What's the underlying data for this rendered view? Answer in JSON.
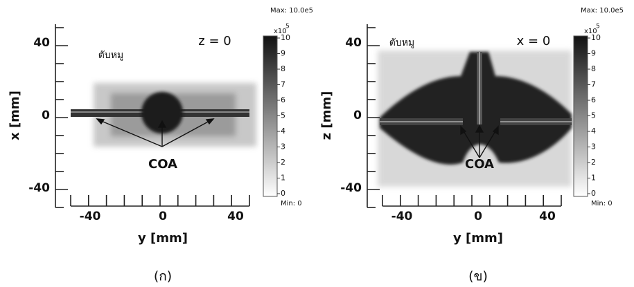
{
  "panels": [
    {
      "caption": "(ก)",
      "slice": "z = 0",
      "tissue": "ตับหมู",
      "annotation": "COA",
      "x_axis": {
        "label": "y [mm]",
        "ticks": [
          "-40",
          "0",
          "40"
        ]
      },
      "y_axis": {
        "label": "x [mm]",
        "ticks": [
          "40",
          "0",
          "-40"
        ]
      },
      "colorbar": {
        "max": "Max: 10.0e5",
        "min": "Min: 0",
        "multiplier": "x10",
        "exponent": "5",
        "ticks": [
          "10",
          "9",
          "8",
          "7",
          "6",
          "5",
          "4",
          "3",
          "2",
          "1",
          "0"
        ]
      }
    },
    {
      "caption": "(ข)",
      "slice": "x = 0",
      "tissue": "ตับหมู",
      "annotation": "COA",
      "x_axis": {
        "label": "y [mm]",
        "ticks": [
          "-40",
          "0",
          "40"
        ]
      },
      "y_axis": {
        "label": "z [mm]",
        "ticks": [
          "40",
          "0",
          "-40"
        ]
      },
      "colorbar": {
        "max": "Max: 10.0e5",
        "min": "Min: 0",
        "multiplier": "x10",
        "exponent": "5",
        "ticks": [
          "10",
          "9",
          "8",
          "7",
          "6",
          "5",
          "4",
          "3",
          "2",
          "1",
          "0"
        ]
      }
    }
  ]
}
